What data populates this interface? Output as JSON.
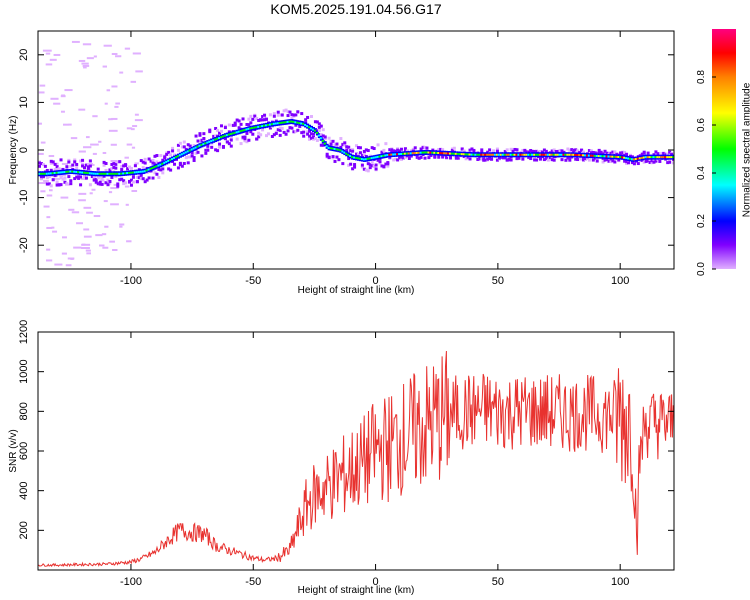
{
  "title": "KOM5.2025.191.04.56.G17",
  "chart_data": [
    {
      "type": "heatmap",
      "name": "spectrogram",
      "xlabel": "Height of straight line (km)",
      "ylabel": "Frequency (Hz)",
      "xlim": [
        -138,
        122
      ],
      "ylim": [
        -25,
        25
      ],
      "xticks": [
        -100,
        -50,
        0,
        50,
        100
      ],
      "yticks": [
        -20,
        -10,
        0,
        10,
        20
      ],
      "colorbar": {
        "label": "Normalized spectral amplitude",
        "range": [
          0,
          1
        ],
        "ticks": [
          "0.0",
          "0.2",
          "0.4",
          "0.6",
          "0.8"
        ],
        "colors": [
          "#e0b0ff",
          "#8000ff",
          "#0000ff",
          "#00ffff",
          "#00ff00",
          "#ffff00",
          "#ff8000",
          "#ff0000",
          "#ff0080"
        ]
      },
      "ridge": {
        "x": [
          -135,
          -125,
          -115,
          -105,
          -95,
          -88,
          -80,
          -72,
          -62,
          -52,
          -42,
          -35,
          -30,
          -25,
          -20,
          -15,
          -10,
          -5,
          0,
          5,
          20,
          40,
          60,
          80,
          100,
          105,
          110,
          122
        ],
        "y": [
          -5,
          -4.5,
          -5,
          -5,
          -4.5,
          -3,
          -1,
          1,
          3,
          4.5,
          5.5,
          6,
          5.5,
          4,
          0.5,
          0,
          -1.5,
          -2,
          -1.5,
          -1,
          -0.5,
          -1,
          -1,
          -1,
          -1.5,
          -2,
          -1.5,
          -1.5
        ]
      }
    },
    {
      "type": "line",
      "name": "snr",
      "xlabel": "Height of straight line (km)",
      "ylabel": "SNR (v/v)",
      "xlim": [
        -138,
        122
      ],
      "ylim": [
        0,
        1200
      ],
      "xticks": [
        -100,
        -50,
        0,
        50,
        100
      ],
      "yticks": [
        200,
        400,
        600,
        800,
        1000,
        1200
      ],
      "line_color": "#e8322f",
      "series": [
        {
          "x": [
            -138,
            -130,
            -120,
            -110,
            -100,
            -95,
            -90,
            -85,
            -80,
            -75,
            -70,
            -65,
            -60,
            -55,
            -50,
            -45,
            -40,
            -35,
            -32,
            -28,
            -25,
            -20,
            -15,
            -10,
            -5,
            0,
            5,
            10,
            15,
            20,
            25,
            30,
            35,
            40,
            45,
            50,
            60,
            70,
            80,
            90,
            95,
            100,
            103,
            105,
            106,
            107,
            108,
            110,
            115,
            122
          ],
          "y": [
            25,
            25,
            28,
            30,
            40,
            60,
            90,
            150,
            200,
            190,
            180,
            120,
            100,
            80,
            60,
            50,
            60,
            100,
            200,
            330,
            380,
            420,
            460,
            500,
            540,
            600,
            620,
            660,
            690,
            720,
            760,
            780,
            800,
            800,
            810,
            800,
            800,
            795,
            790,
            790,
            780,
            780,
            760,
            740,
            400,
            150,
            560,
            740,
            740,
            740
          ]
        }
      ]
    }
  ]
}
